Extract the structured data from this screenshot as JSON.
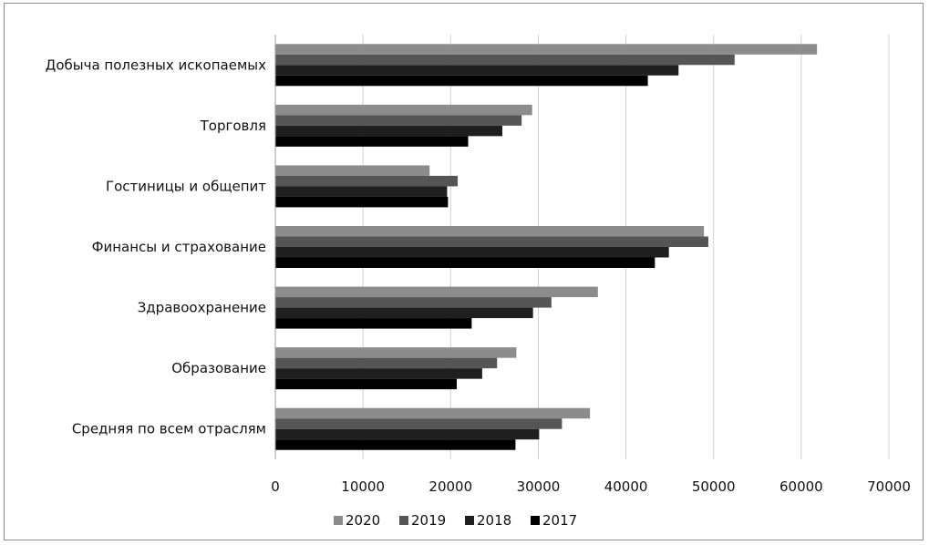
{
  "chart_data": {
    "type": "bar",
    "orientation": "horizontal",
    "categories": [
      "Добыча полезных ископаемых",
      "Торговля",
      "Гостиницы и общепит",
      "Финансы и страхование",
      "Здравоохранение",
      "Образование",
      "Средняя по всем отраслям"
    ],
    "series": [
      {
        "name": "2020",
        "color": "#8c8c8c",
        "values": [
          61800,
          29300,
          17600,
          48900,
          36800,
          27500,
          35900
        ]
      },
      {
        "name": "2019",
        "color": "#555555",
        "values": [
          52400,
          28100,
          20800,
          49400,
          31500,
          25300,
          32700
        ]
      },
      {
        "name": "2018",
        "color": "#1f1f1f",
        "values": [
          46000,
          25900,
          19600,
          44900,
          29400,
          23600,
          30100
        ]
      },
      {
        "name": "2017",
        "color": "#000000",
        "values": [
          42500,
          22000,
          19700,
          43300,
          22400,
          20700,
          27400
        ]
      }
    ],
    "xlim": [
      0,
      70000
    ],
    "xticks": [
      "0",
      "10000",
      "20000",
      "30000",
      "40000",
      "50000",
      "60000",
      "70000"
    ],
    "grid": true,
    "legend": {
      "position": "bottom",
      "order": [
        "2020",
        "2019",
        "2018",
        "2017"
      ]
    },
    "title": "",
    "xlabel": "",
    "ylabel": ""
  }
}
